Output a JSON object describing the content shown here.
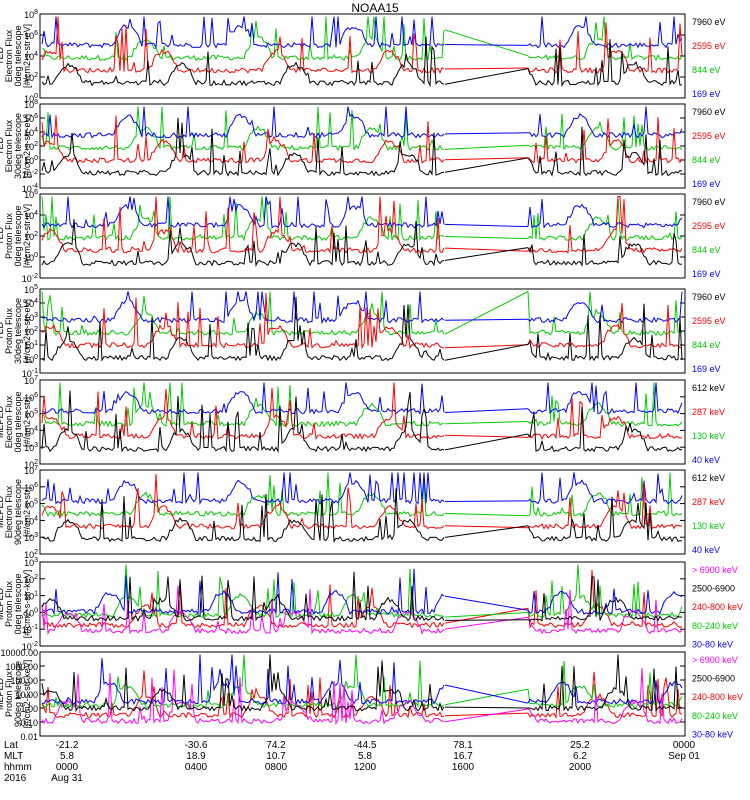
{
  "title": "NOAA15",
  "panels": [
    {
      "ylabel": [
        "TED",
        "Electron Flux",
        "0deg telescope",
        "[#/cm2-s-str-eV]"
      ],
      "yticks": [
        "10^8",
        "10^6",
        "10^4",
        "10^2",
        "10^0"
      ],
      "legend": [
        {
          "label": "7960 eV",
          "color": "#000000"
        },
        {
          "label": "2595 eV",
          "color": "#ff0000"
        },
        {
          "label": "844 eV",
          "color": "#00cc00"
        },
        {
          "label": "169 eV",
          "color": "#0000ff"
        }
      ]
    },
    {
      "ylabel": [
        "TED",
        "Electron Flux",
        "30deg telescope",
        "[#/cm2-s-str-eV]"
      ],
      "yticks": [
        "10^8",
        "10^6",
        "10^4",
        "10^2",
        "10^0",
        "10^-2",
        "10^-4"
      ],
      "legend": [
        {
          "label": "7960 eV",
          "color": "#000000"
        },
        {
          "label": "2595 eV",
          "color": "#ff0000"
        },
        {
          "label": "844 eV",
          "color": "#00cc00"
        },
        {
          "label": "169 eV",
          "color": "#0000ff"
        }
      ]
    },
    {
      "ylabel": [
        "TED",
        "Proton Flux",
        "0deg telescope",
        "[#/cm2-s-str-eV]"
      ],
      "yticks": [
        "10^6",
        "10^4",
        "10^2",
        "10^0",
        "10^-2"
      ],
      "legend": [
        {
          "label": "7960 eV",
          "color": "#000000"
        },
        {
          "label": "2595 eV",
          "color": "#ff0000"
        },
        {
          "label": "844 eV",
          "color": "#00cc00"
        },
        {
          "label": "169 eV",
          "color": "#0000ff"
        }
      ]
    },
    {
      "ylabel": [
        "TED",
        "Proton Flux",
        "30deg telescope",
        "[#/cm2-s-str-eV]"
      ],
      "yticks": [
        "10^5",
        "10^4",
        "10^3",
        "10^2",
        "10^1",
        "10^0",
        "10^-1"
      ],
      "legend": [
        {
          "label": "7960 eV",
          "color": "#000000"
        },
        {
          "label": "2595 eV",
          "color": "#ff0000"
        },
        {
          "label": "844 eV",
          "color": "#00cc00"
        },
        {
          "label": "169 eV",
          "color": "#0000ff"
        }
      ]
    },
    {
      "ylabel": [
        "MEPED",
        "Electron Flux",
        "0deg telescope",
        "[#/cm2-s-str]"
      ],
      "yticks": [
        "10^7",
        "10^6",
        "10^5",
        "10^4",
        "10^3",
        "10^2"
      ],
      "legend": [
        {
          "label": "612 keV",
          "color": "#000000"
        },
        {
          "label": "287 keV",
          "color": "#ff0000"
        },
        {
          "label": "130 keV",
          "color": "#00cc00"
        },
        {
          "label": "40 keV",
          "color": "#0000ff"
        }
      ]
    },
    {
      "ylabel": [
        "MEPED",
        "Electron Flux",
        "90deg telescope",
        "[#/cm2-s-str]"
      ],
      "yticks": [
        "10^7",
        "10^6",
        "10^5",
        "10^4",
        "10^3",
        "10^2"
      ],
      "legend": [
        {
          "label": "612 keV",
          "color": "#000000"
        },
        {
          "label": "287 keV",
          "color": "#ff0000"
        },
        {
          "label": "130 keV",
          "color": "#00cc00"
        },
        {
          "label": "40 keV",
          "color": "#0000ff"
        }
      ]
    },
    {
      "ylabel": [
        "MEPED",
        "Proton Flux",
        "0deg telescope",
        "[#/cm2-s-str-keV]"
      ],
      "yticks": [
        "10^3",
        "10^2",
        "10^1",
        "10^0",
        "10^-1",
        "10^-2"
      ],
      "legend": [
        {
          "label": "> 6900 keV",
          "color": "#ff00ff"
        },
        {
          "label": "2500-6900",
          "color": "#000000"
        },
        {
          "label": "240-800 keV",
          "color": "#ff0000"
        },
        {
          "label": "80-240 keV",
          "color": "#00cc00"
        },
        {
          "label": "30-80 keV",
          "color": "#0000ff"
        }
      ]
    },
    {
      "ylabel": [
        "MEPED",
        "Proton Flux",
        "90deg telescope",
        "[#/cm2-s-str-keV]"
      ],
      "yticks": [
        "10000.00",
        "1000.00",
        "100.00",
        "10.00",
        "1.00",
        "0.10",
        "0.01"
      ],
      "legend": [
        {
          "label": "> 6900 keV",
          "color": "#ff00ff"
        },
        {
          "label": "2500-6900",
          "color": "#000000"
        },
        {
          "label": "240-800 keV",
          "color": "#ff0000"
        },
        {
          "label": "80-240 keV",
          "color": "#00cc00"
        },
        {
          "label": "30-80 keV",
          "color": "#0000ff"
        }
      ]
    }
  ],
  "footer": {
    "row_labels": [
      "Lat",
      "MLT",
      "hhmm",
      "2016"
    ],
    "columns": [
      {
        "lat": "-21.2",
        "mlt": "5.8",
        "hhmm": "0000",
        "date": "Aug 31"
      },
      {
        "lat": "-30.6",
        "mlt": "18.9",
        "hhmm": "0400",
        "date": ""
      },
      {
        "lat": "74.2",
        "mlt": "10.7",
        "hhmm": "0800",
        "date": ""
      },
      {
        "lat": "-44.5",
        "mlt": "5.8",
        "hhmm": "1200",
        "date": ""
      },
      {
        "lat": "78.1",
        "mlt": "16.7",
        "hhmm": "1600",
        "date": ""
      },
      {
        "lat": "25.2",
        "mlt": "6.2",
        "hhmm": "2000",
        "date": ""
      },
      {
        "lat": "",
        "mlt": "",
        "hhmm": "0000",
        "date": "Sep 01"
      }
    ]
  },
  "chart_data": {
    "type": "line",
    "title": "NOAA15",
    "x_unit": "hhmm UT",
    "x_range": [
      "2016 Aug 31 0000",
      "2016 Sep 01 0000"
    ],
    "data_gap": [
      "1513",
      "2000"
    ],
    "ylog": true
  }
}
